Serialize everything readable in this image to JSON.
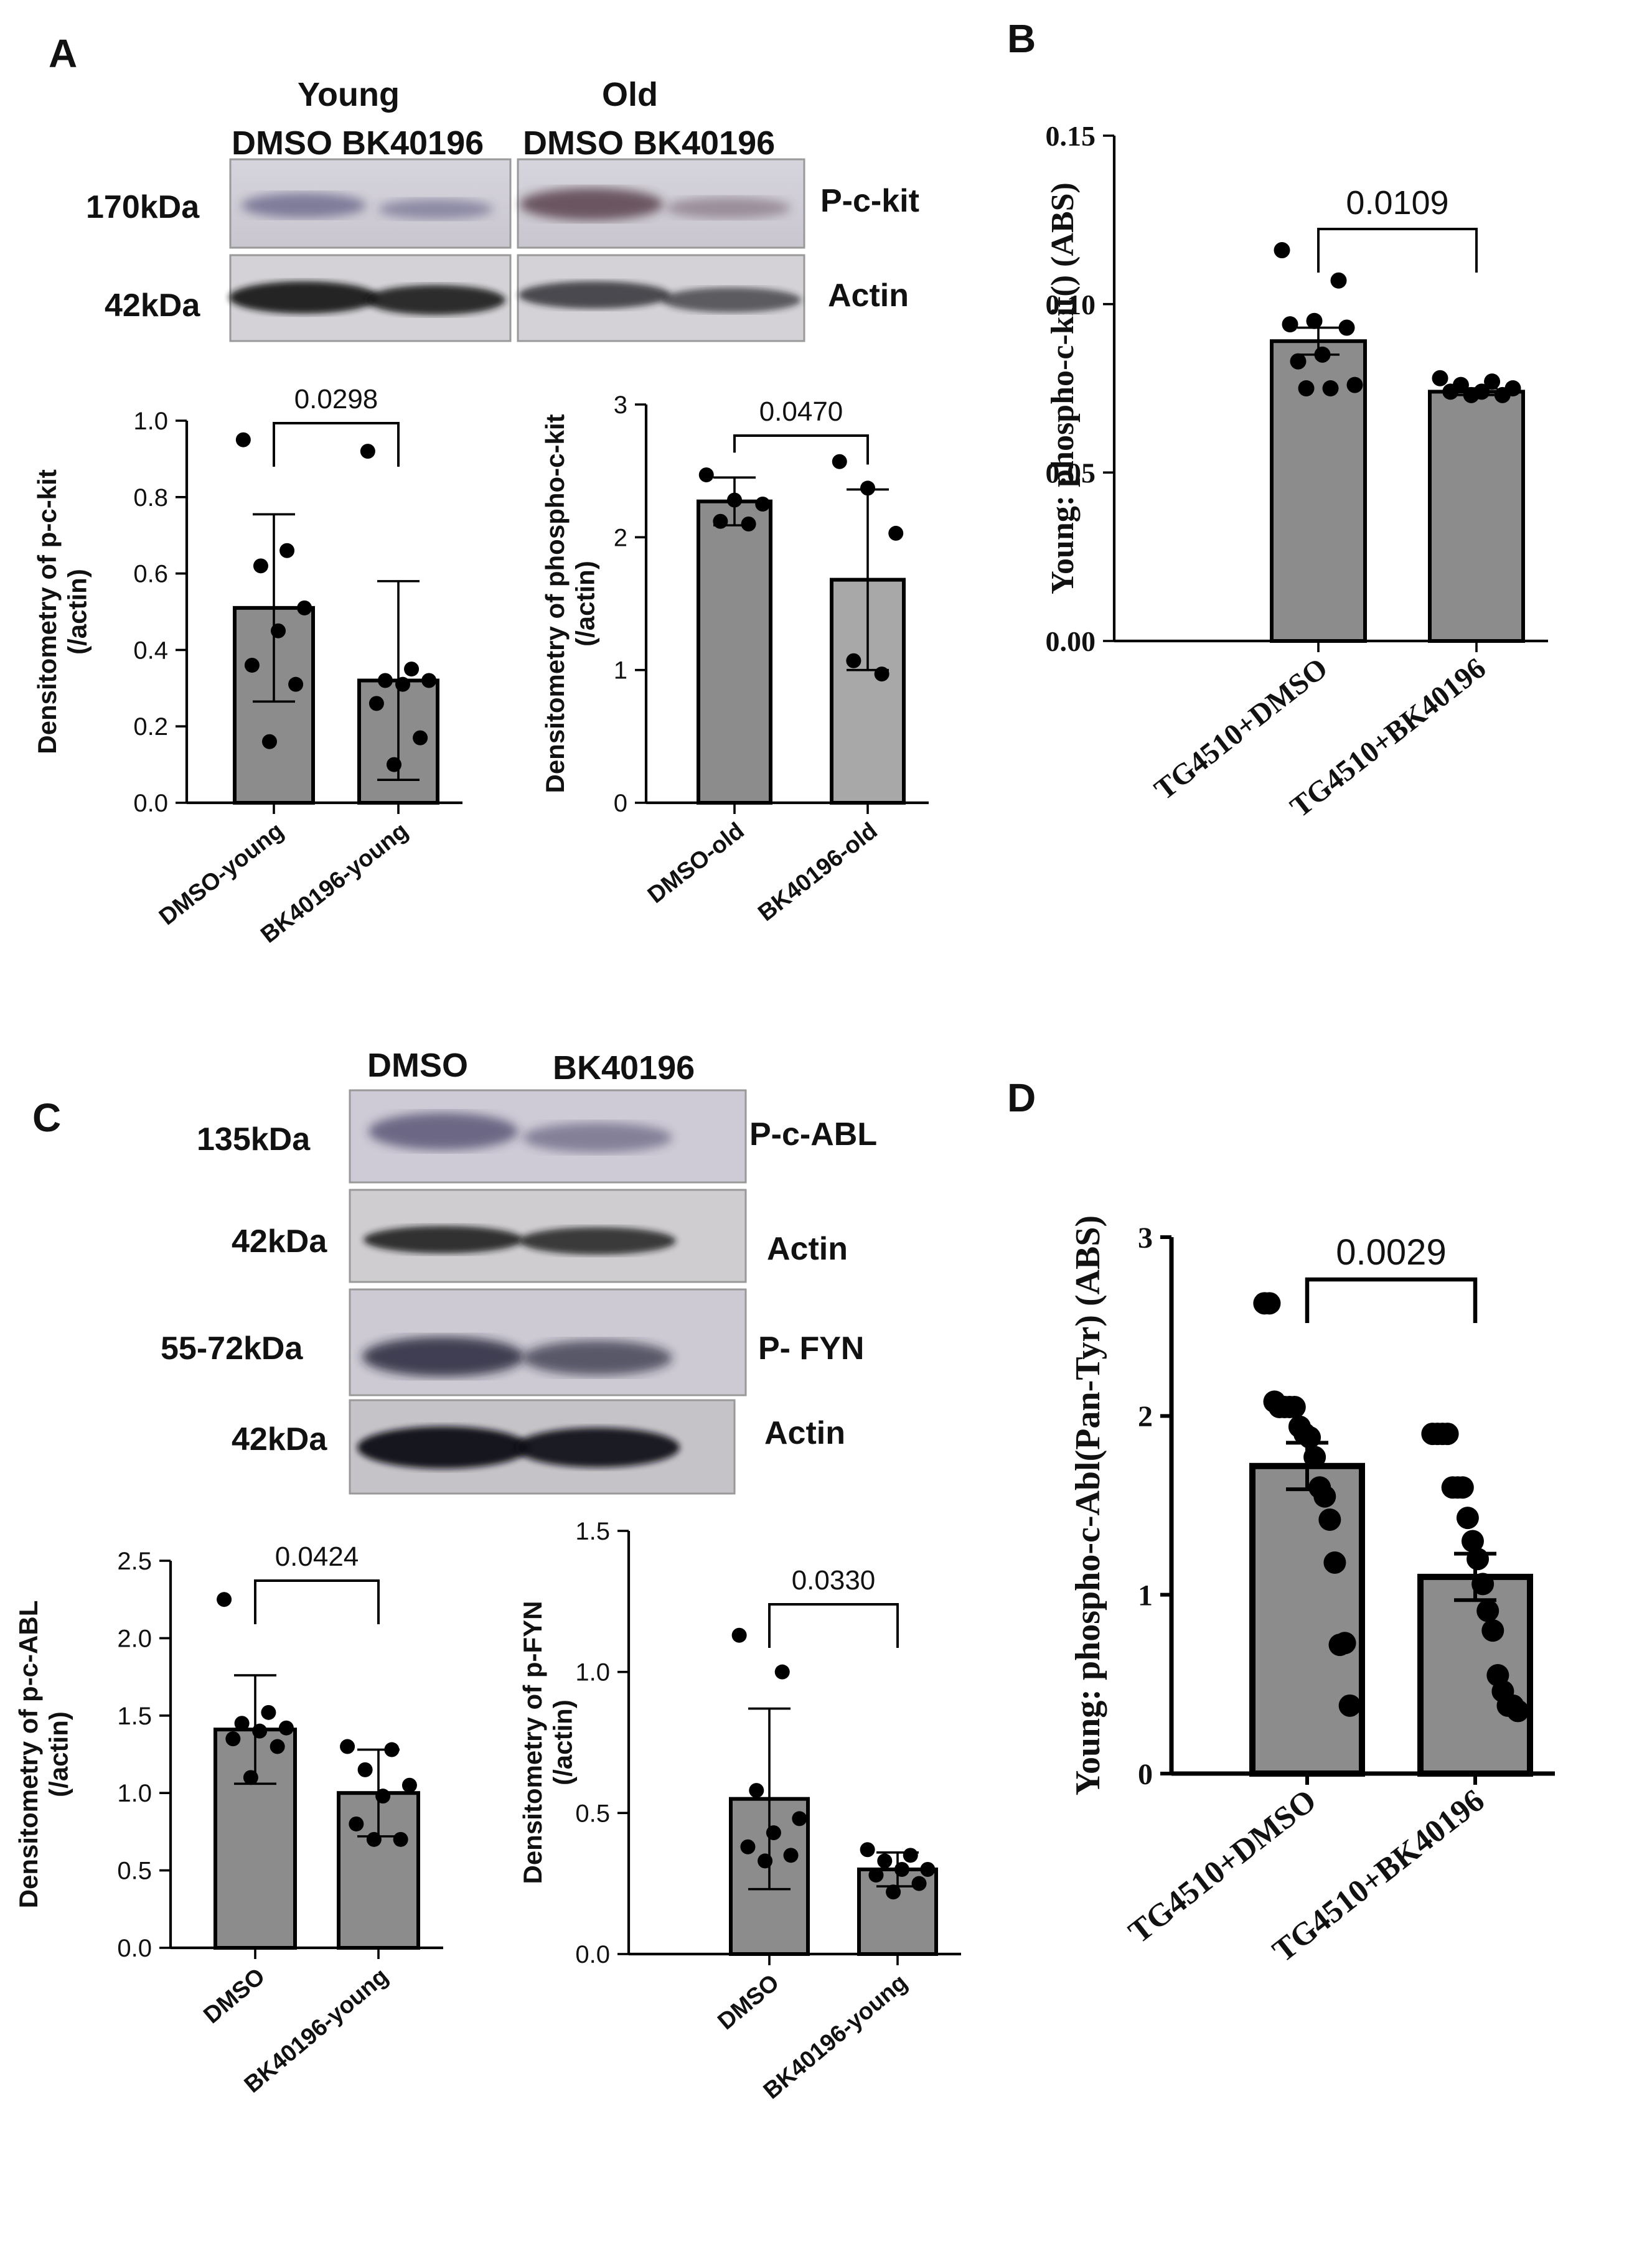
{
  "panels": {
    "A": "A",
    "B": "B",
    "C": "C",
    "D": "D"
  },
  "blot_A": {
    "group_young": "Young",
    "group_old": "Old",
    "lanes_young": "DMSO BK40196",
    "lanes_old": "DMSO BK40196",
    "mw_top": "170kDa",
    "mw_bottom": "42kDa",
    "band_top": "P-c-kit",
    "band_bottom": "Actin"
  },
  "blot_C": {
    "lane1": "DMSO",
    "lane2": "BK40196",
    "mw": [
      "135kDa",
      "42kDa",
      "55-72kDa",
      "42kDa"
    ],
    "bands": [
      "P-c-ABL",
      "Actin",
      "P- FYN",
      "Actin"
    ]
  },
  "chart_data": [
    {
      "id": "A1",
      "type": "bar",
      "categories": [
        "DMSO-young",
        "BK40196-young"
      ],
      "values": [
        0.51,
        0.32
      ],
      "error": [
        0.245,
        0.26
      ],
      "points": [
        [
          0.95,
          0.66,
          0.62,
          0.51,
          0.45,
          0.36,
          0.31,
          0.16
        ],
        [
          0.92,
          0.35,
          0.32,
          0.32,
          0.31,
          0.26,
          0.17,
          0.1
        ]
      ],
      "ylabel": "Densitometry of p-c-kit (/actin)",
      "ylim": [
        0,
        1.0
      ],
      "yticks": [
        "0.0",
        "0.2",
        "0.4",
        "0.6",
        "0.8",
        "1.0"
      ],
      "pvalue": "0.0298",
      "bar_colors": [
        "#8c8c8c",
        "#8c8c8c"
      ]
    },
    {
      "id": "A2",
      "type": "bar",
      "categories": [
        "DMSO-old",
        "BK40196-old"
      ],
      "values": [
        2.27,
        1.68
      ],
      "error": [
        0.18,
        0.68
      ],
      "points": [
        [
          2.47,
          2.28,
          2.25,
          2.12,
          2.1
        ],
        [
          2.57,
          2.37,
          2.03,
          1.07,
          0.97
        ]
      ],
      "ylabel": "Densitometry of phospho-c-kit (/actin)",
      "ylim": [
        0,
        3
      ],
      "yticks": [
        "0",
        "1",
        "2",
        "3"
      ],
      "pvalue": "0.0470",
      "bar_colors": [
        "#8c8c8c",
        "#a8a8a8"
      ]
    },
    {
      "id": "B",
      "type": "bar",
      "categories": [
        "TG4510+DMSO",
        "TG4510+BK40196"
      ],
      "values": [
        0.089,
        0.074
      ],
      "error": [
        0.004,
        0.001
      ],
      "points": [
        [
          0.116,
          0.107,
          0.095,
          0.094,
          0.093,
          0.085,
          0.083,
          0.076,
          0.075,
          0.075
        ],
        [
          0.078,
          0.077,
          0.076,
          0.075,
          0.074,
          0.074,
          0.073,
          0.073
        ]
      ],
      "ylabel": "Young: phospho-c-kit() (ABS)",
      "ylim": [
        0,
        0.15
      ],
      "yticks": [
        "0.00",
        "0.05",
        "0.10",
        "0.15"
      ],
      "pvalue": "0.0109",
      "bar_colors": [
        "#8c8c8c",
        "#8c8c8c"
      ]
    },
    {
      "id": "C1",
      "type": "bar",
      "categories": [
        "DMSO",
        "BK40196-young"
      ],
      "values": [
        1.41,
        1.0
      ],
      "error": [
        0.35,
        0.28
      ],
      "points": [
        [
          2.25,
          1.52,
          1.45,
          1.42,
          1.4,
          1.35,
          1.3,
          1.1
        ],
        [
          1.3,
          1.28,
          1.15,
          1.05,
          0.98,
          0.8,
          0.7,
          0.7
        ]
      ],
      "ylabel": "Densitometry of p-c-ABL (/actin)",
      "ylim": [
        0,
        2.5
      ],
      "yticks": [
        "0.0",
        "0.5",
        "1.0",
        "1.5",
        "2.0",
        "2.5"
      ],
      "pvalue": "0.0424",
      "bar_colors": [
        "#8c8c8c",
        "#8c8c8c"
      ]
    },
    {
      "id": "C2",
      "type": "bar",
      "categories": [
        "DMSO",
        "BK40196-young"
      ],
      "values": [
        0.55,
        0.3
      ],
      "error": [
        0.32,
        0.06
      ],
      "points": [
        [
          1.13,
          1.0,
          0.58,
          0.48,
          0.43,
          0.38,
          0.35,
          0.33
        ],
        [
          0.37,
          0.35,
          0.33,
          0.3,
          0.3,
          0.28,
          0.25,
          0.22
        ]
      ],
      "ylabel": "Densitometry of p-FYN (/actin)",
      "ylim": [
        0,
        1.5
      ],
      "yticks": [
        "0.0",
        "0.5",
        "1.0",
        "1.5"
      ],
      "pvalue": "0.0330",
      "bar_colors": [
        "#8c8c8c",
        "#8c8c8c"
      ]
    },
    {
      "id": "D",
      "type": "bar",
      "categories": [
        "TG4510+DMSO",
        "TG4510+BK40196"
      ],
      "values": [
        1.72,
        1.1
      ],
      "error": [
        0.13,
        0.13
      ],
      "points": [
        [
          2.63,
          2.63,
          2.08,
          2.05,
          2.05,
          2.05,
          2.05,
          1.94,
          1.9,
          1.88,
          1.77,
          1.6,
          1.55,
          1.42,
          1.18,
          0.72,
          0.73,
          0.38
        ],
        [
          1.9,
          1.9,
          1.9,
          1.9,
          1.6,
          1.6,
          1.6,
          1.43,
          1.3,
          1.2,
          1.06,
          0.91,
          0.8,
          0.55,
          0.46,
          0.38,
          0.38,
          0.35
        ]
      ],
      "ylabel": "Young: phospho-c-Abl(Pan-Tyr) (ABS)",
      "ylim": [
        0,
        3
      ],
      "yticks": [
        "0",
        "1",
        "2",
        "3"
      ],
      "pvalue": "0.0029",
      "bar_colors": [
        "#8c8c8c",
        "#8c8c8c"
      ]
    }
  ]
}
